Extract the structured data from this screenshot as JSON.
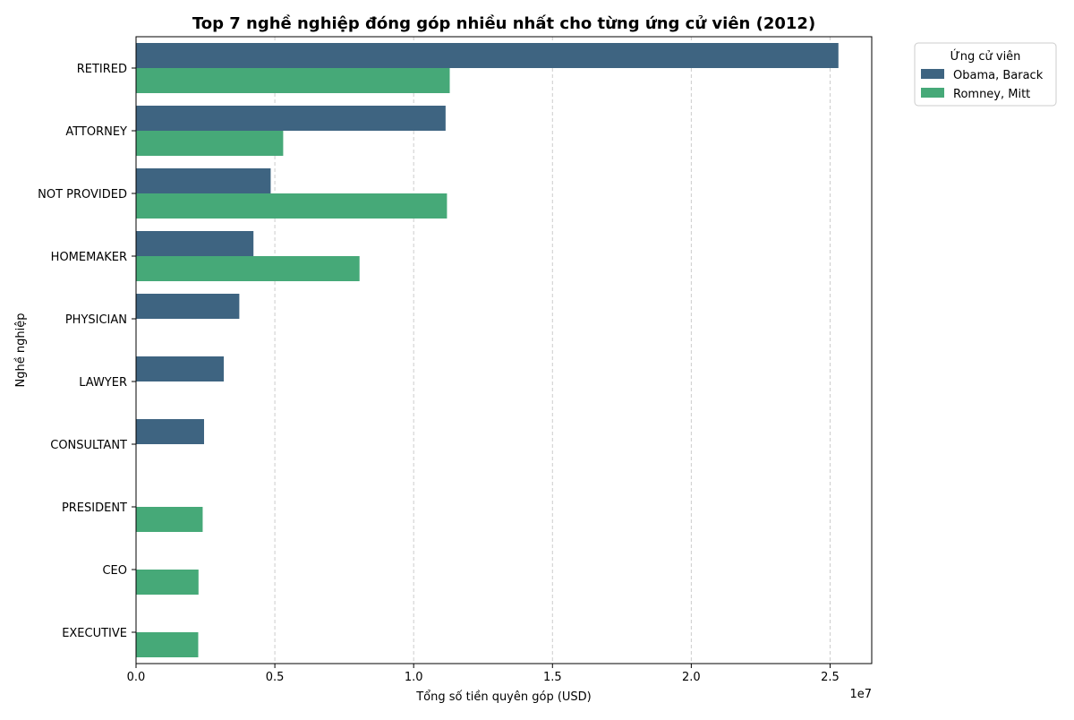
{
  "chart_data": {
    "type": "bar",
    "orientation": "horizontal",
    "title": "Top 7 nghề nghiệp đóng góp nhiều nhất cho từng ứng cử viên (2012)",
    "xlabel": "Tổng số tiền quyên góp (USD)",
    "ylabel": "Nghề nghiệp",
    "x_offset_label": "1e7",
    "xlim": [
      0,
      26500000
    ],
    "x_ticks": [
      0,
      5000000,
      10000000,
      15000000,
      20000000,
      25000000
    ],
    "x_tick_labels": [
      "0.0",
      "0.5",
      "1.0",
      "1.5",
      "2.0",
      "2.5"
    ],
    "grid": "x-dashed",
    "categories": [
      "RETIRED",
      "ATTORNEY",
      "NOT PROVIDED",
      "HOMEMAKER",
      "PHYSICIAN",
      "LAWYER",
      "CONSULTANT",
      "PRESIDENT",
      "CEO",
      "EXECUTIVE"
    ],
    "series": [
      {
        "name": "Obama, Barack",
        "color": "#3e6481",
        "values": [
          25300000,
          11150000,
          4850000,
          4230000,
          3720000,
          3160000,
          2450000,
          null,
          null,
          null
        ]
      },
      {
        "name": "Romney, Mitt",
        "color": "#46a978",
        "values": [
          11300000,
          5300000,
          11200000,
          8050000,
          null,
          null,
          null,
          2400000,
          2250000,
          2240000
        ]
      }
    ],
    "legend": {
      "title": "Ứng cử viên",
      "position": "outside-top-right"
    }
  }
}
